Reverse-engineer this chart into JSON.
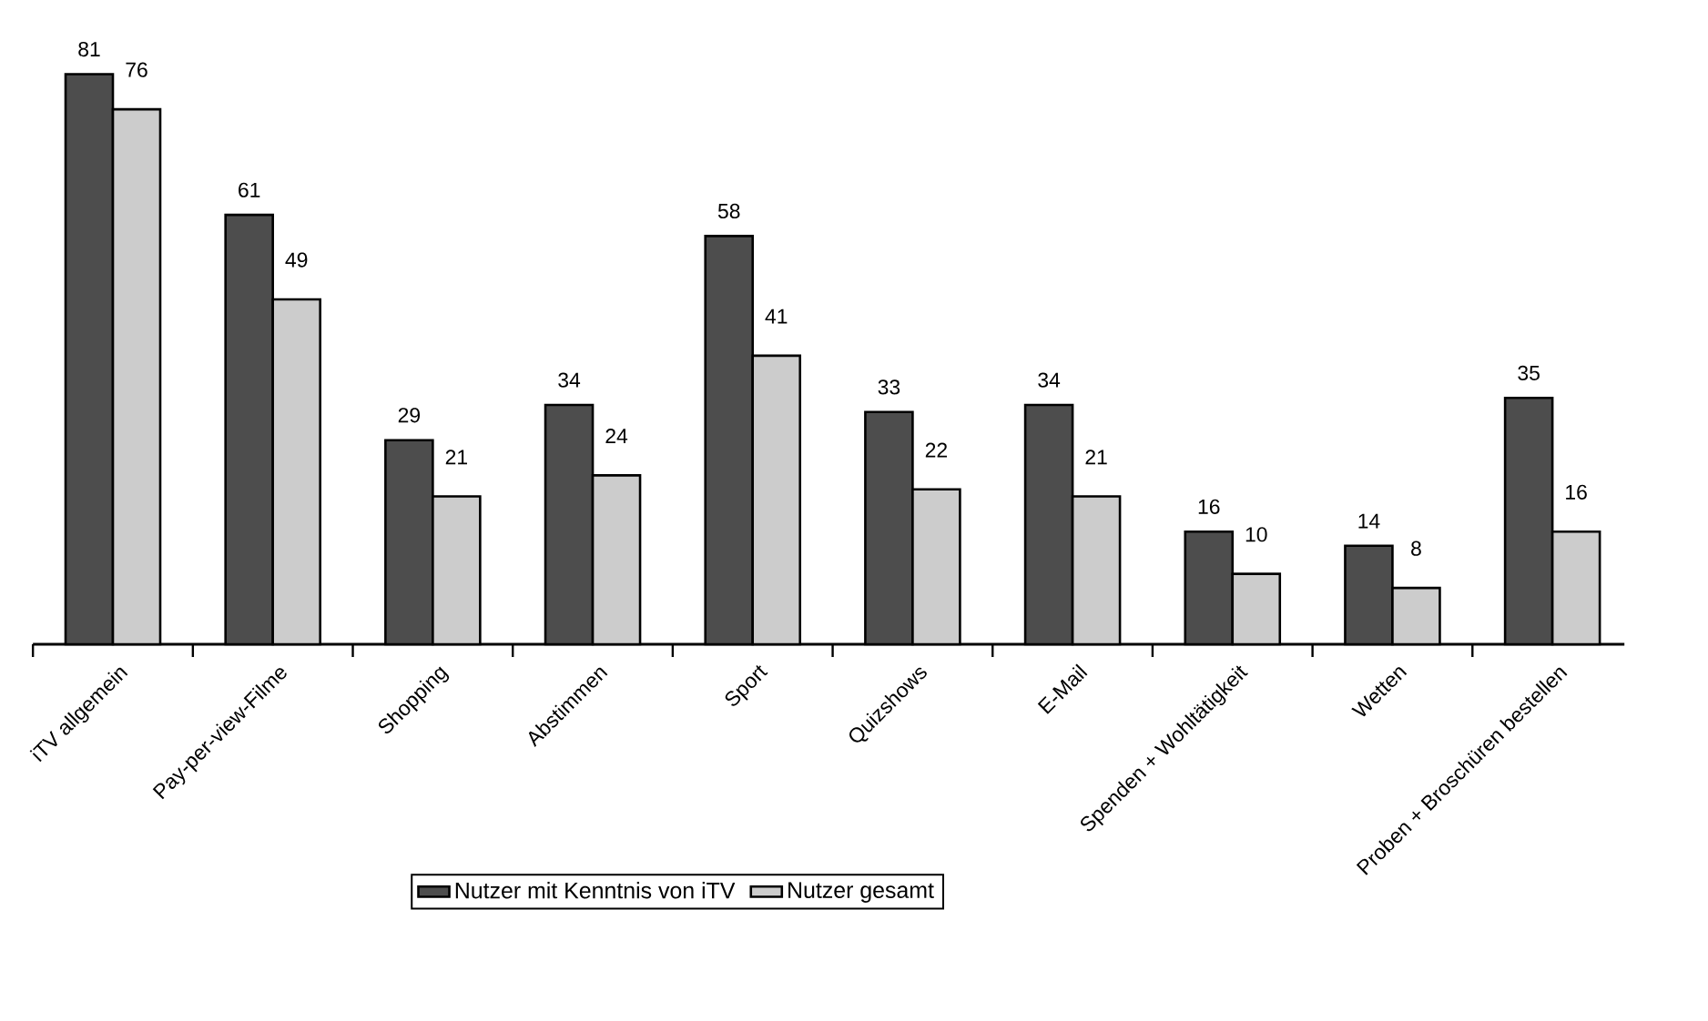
{
  "chart_data": {
    "type": "bar",
    "categories": [
      "iTV allgemein",
      "Pay-per-view-Filme",
      "Shopping",
      "Abstimmen",
      "Sport",
      "Quizshows",
      "E-Mail",
      "Spenden + Wohltätigkeit",
      "Wetten",
      "Proben + Broschüren bestellen"
    ],
    "series": [
      {
        "name": "Nutzer mit Kenntnis von iTV",
        "color": "#4d4d4d",
        "values": [
          81,
          61,
          29,
          34,
          58,
          33,
          34,
          16,
          14,
          35
        ]
      },
      {
        "name": "Nutzer gesamt",
        "color": "#cccccc",
        "values": [
          76,
          49,
          21,
          24,
          41,
          22,
          21,
          10,
          8,
          16
        ]
      }
    ],
    "data_labels": true,
    "legend": "bottom"
  }
}
